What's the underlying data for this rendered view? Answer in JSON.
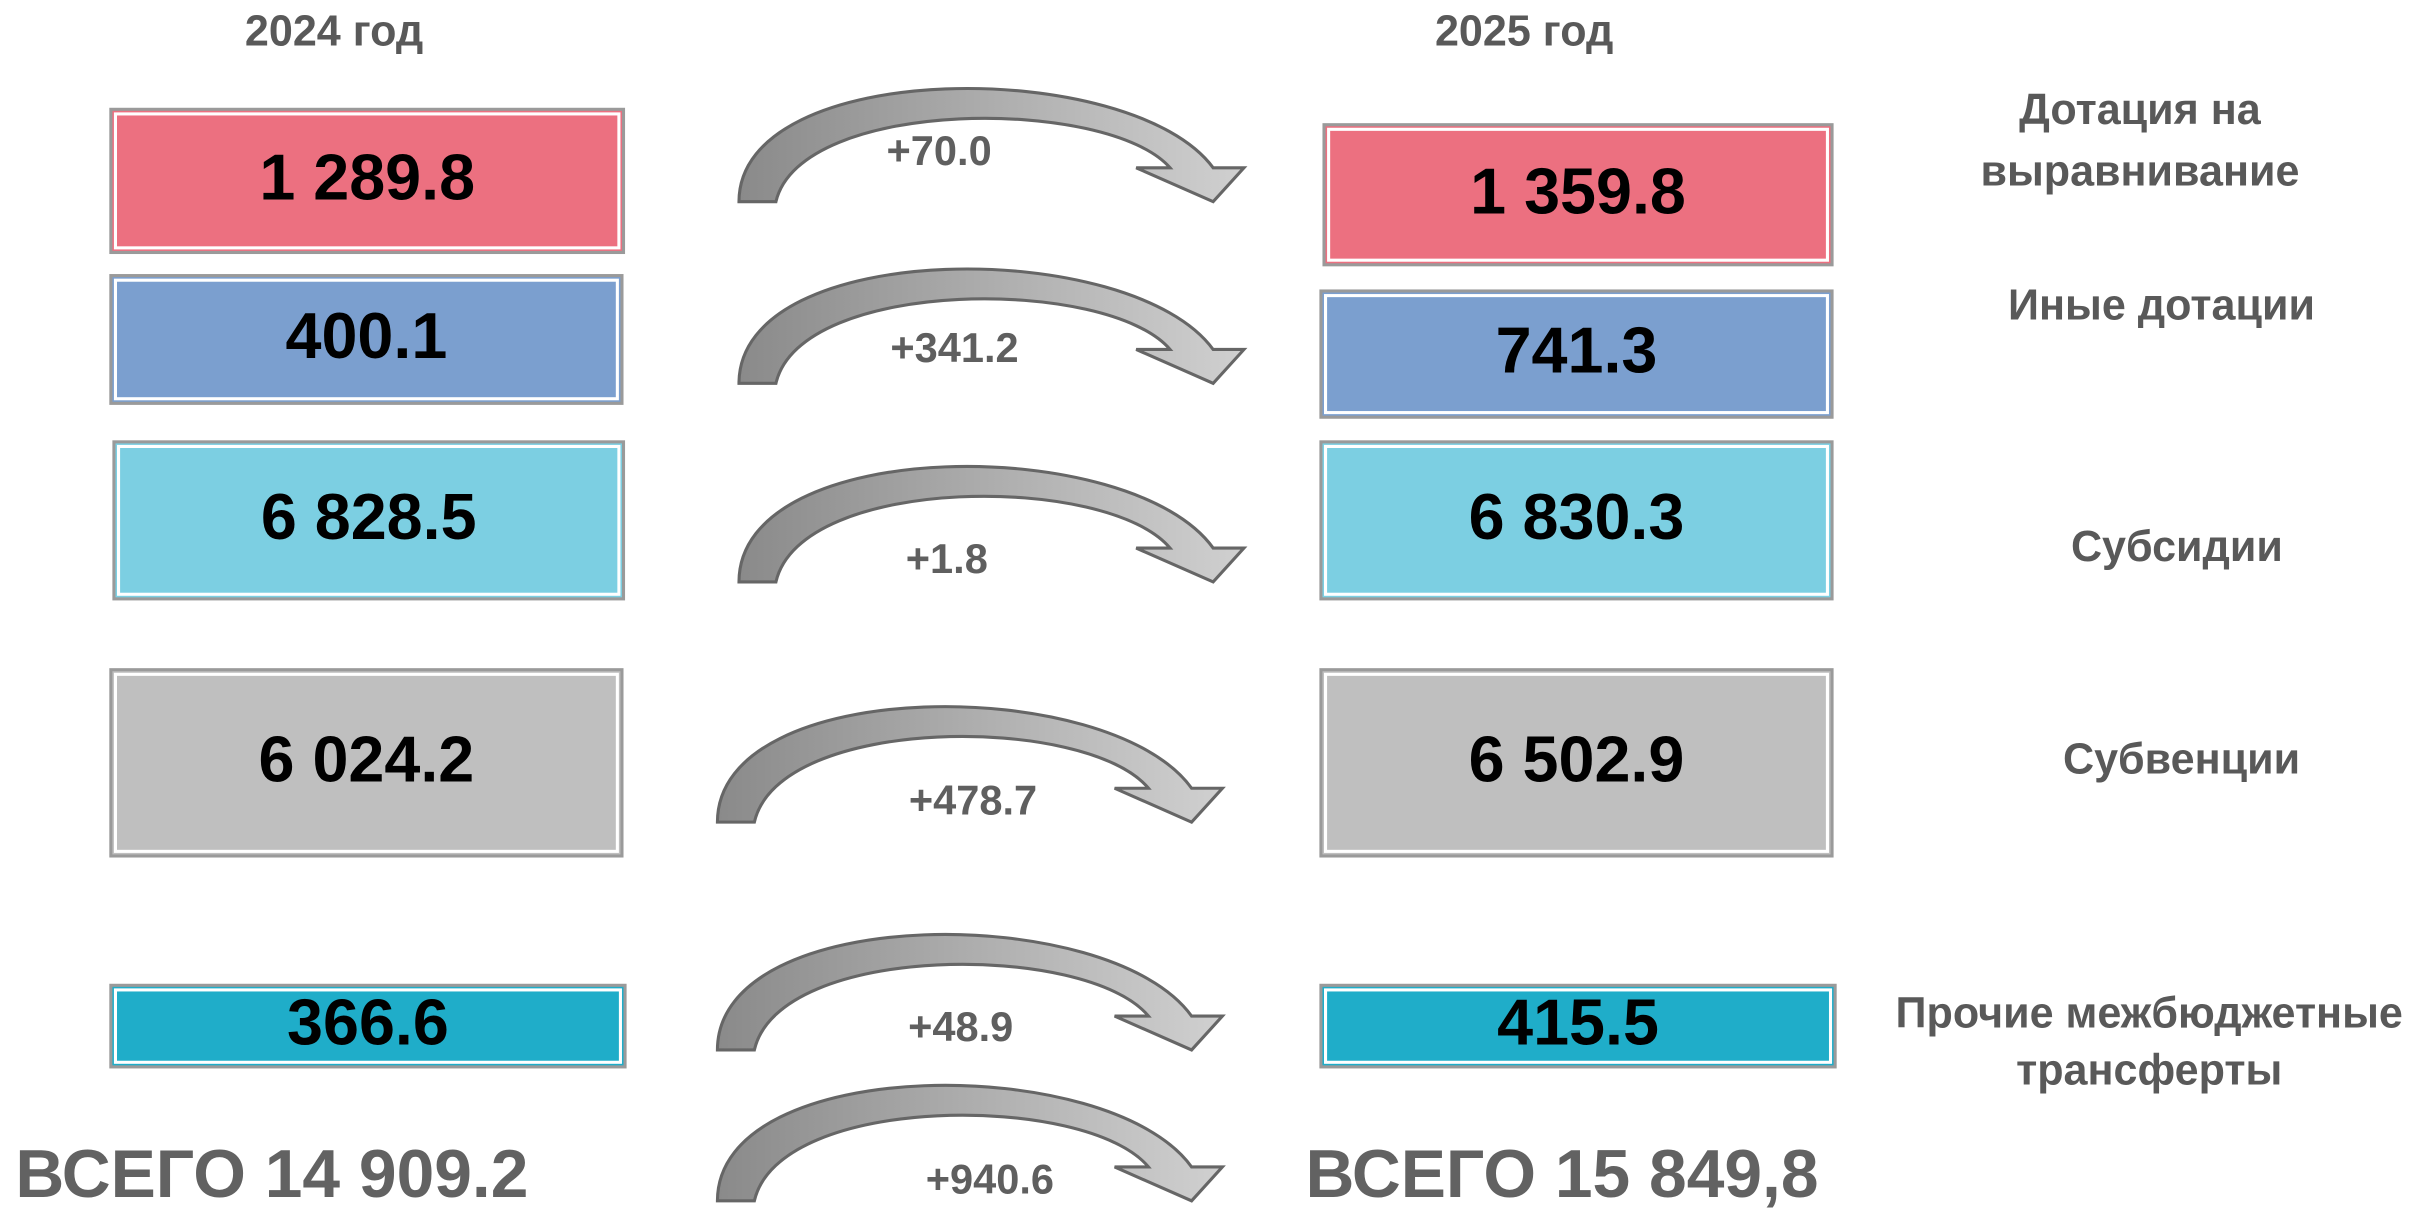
{
  "headers": {
    "left": "2024 год",
    "right": "2025 год"
  },
  "rows": [
    {
      "label": [
        "Дотация на",
        "выравнивание"
      ],
      "value_2024": "1 289.8",
      "value_2025": "1 359.8",
      "change": "+70.0",
      "color": "#ec7080"
    },
    {
      "label": [
        "Иные дотации"
      ],
      "value_2024": "400.1",
      "value_2025": "741.3",
      "change": "+341.2",
      "color": "#7b9fcf"
    },
    {
      "label": [
        "Субсидии"
      ],
      "value_2024": "6 828.5",
      "value_2025": "6 830.3",
      "change": "+1.8",
      "color": "#7ccfe2"
    },
    {
      "label": [
        "Субвенции"
      ],
      "value_2024": "6 024.2",
      "value_2025": "6 502.9",
      "change": "+478.7",
      "color": "#bfbfbf"
    },
    {
      "label": [
        "Прочие межбюджетные",
        "трансферты"
      ],
      "value_2024": "366.6",
      "value_2025": "415.5",
      "change": "+48.9",
      "color": "#1fadc9"
    }
  ],
  "total": {
    "left": "ВСЕГО 14 909.2",
    "right": "ВСЕГО 15 849,8",
    "change": "+940.6"
  }
}
